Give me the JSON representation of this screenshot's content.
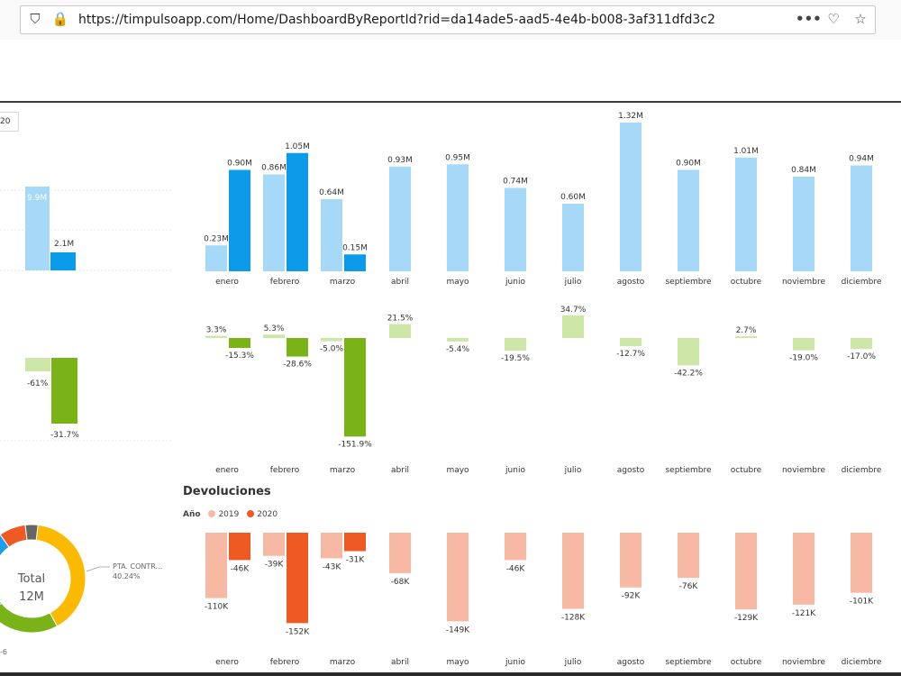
{
  "browser": {
    "url": "https://timpulsoapp.com/Home/DashboardByReportId?rid=da14ade5-aad5-4e4b-b008-3af311dfd3c2",
    "icons": [
      "shield-icon",
      "lock-icon",
      "more-icon",
      "pocket-icon",
      "star-icon"
    ]
  },
  "report": {
    "tab_fragment": "20",
    "devoluciones_title": "Devoluciones",
    "legend_label": "Año",
    "legend_2019": "2019",
    "legend_2020": "2020",
    "donut_center_label": "Total",
    "donut_center_value": "12M",
    "donut_slice_label": "PTA. CONTR...",
    "donut_slice_pct": "40.24%",
    "left_partial": {
      "sales_2019_label": "9.9M",
      "sales_2020_label": "2.1M",
      "var_2019_label": "-61%",
      "var_2020_label": "-31.7%",
      "ret_tick_label": "-6"
    }
  },
  "colors": {
    "sales_2019": "#a6d9f7",
    "sales_2020": "#0b9be8",
    "var_2019": "#cde7a7",
    "var_2020": "#7ab317",
    "ret_2019": "#f8b9a4",
    "ret_2020": "#ef5a24",
    "donut": [
      "#fbb900",
      "#7ab317",
      "#1f9cf0",
      "#ef5a24",
      "#666666"
    ]
  },
  "chart_data": [
    {
      "type": "bar",
      "categories": [
        "enero",
        "febrero",
        "marzo",
        "abril",
        "mayo",
        "junio",
        "julio",
        "agosto",
        "septiembre",
        "octubre",
        "noviembre",
        "diciembre"
      ],
      "series": [
        {
          "values": [
            0.23,
            0.86,
            0.64,
            0.93,
            0.95,
            0.74,
            0.6,
            1.32,
            0.9,
            1.01,
            0.84,
            0.94
          ],
          "labels": [
            "0.23M",
            "0.86M",
            "0.64M",
            "0.93M",
            "0.95M",
            "0.74M",
            "0.60M",
            "1.32M",
            "0.90M",
            "1.01M",
            "0.84M",
            "0.94M"
          ]
        },
        {
          "values": [
            0.9,
            1.05,
            0.15,
            null,
            null,
            null,
            null,
            null,
            null,
            null,
            null,
            null
          ],
          "labels": [
            "0.90M",
            "1.05M",
            "0.15M",
            "",
            "",
            "",
            "",
            "",
            "",
            "",
            "",
            ""
          ]
        }
      ]
    },
    {
      "type": "bar",
      "categories": [
        "enero",
        "febrero",
        "marzo",
        "abril",
        "mayo",
        "junio",
        "julio",
        "agosto",
        "septiembre",
        "octubre",
        "noviembre",
        "diciembre"
      ],
      "series": [
        {
          "values": [
            3.3,
            5.3,
            -5.0,
            21.5,
            -5.4,
            -19.5,
            34.7,
            -12.7,
            -42.2,
            2.7,
            -19.0,
            -17.0
          ],
          "labels": [
            "3.3%",
            "5.3%",
            "-5.0%",
            "21.5%",
            "-5.4%",
            "-19.5%",
            "34.7%",
            "-12.7%",
            "-42.2%",
            "2.7%",
            "-19.0%",
            "-17.0%"
          ]
        },
        {
          "values": [
            -15.3,
            -28.6,
            -151.9,
            null,
            null,
            null,
            null,
            null,
            null,
            null,
            null,
            null
          ],
          "labels": [
            "-15.3%",
            "-28.6%",
            "-151.9%",
            "",
            "",
            "",
            "",
            "",
            "",
            "",
            "",
            ""
          ]
        }
      ]
    },
    {
      "type": "bar",
      "title": "Devoluciones",
      "categories": [
        "enero",
        "febrero",
        "marzo",
        "abril",
        "mayo",
        "junio",
        "julio",
        "agosto",
        "septiembre",
        "octubre",
        "noviembre",
        "diciembre"
      ],
      "series": [
        {
          "name": "2019",
          "values": [
            -110,
            -39,
            -43,
            -68,
            -149,
            -46,
            -128,
            -92,
            -76,
            -129,
            -121,
            -101
          ],
          "labels": [
            "-110K",
            "-39K",
            "-43K",
            "-68K",
            "-149K",
            "-46K",
            "-128K",
            "-92K",
            "-76K",
            "-129K",
            "-121K",
            "-101K"
          ]
        },
        {
          "name": "2020",
          "values": [
            -46,
            -152,
            -31,
            null,
            null,
            null,
            null,
            null,
            null,
            null,
            null,
            null
          ],
          "labels": [
            "-46K",
            "-152K",
            "-31K",
            "",
            "",
            "",
            "",
            "",
            "",
            "",
            "",
            ""
          ]
        }
      ]
    },
    {
      "type": "pie",
      "slices": [
        {
          "label": "PTA. CONTR...",
          "value": 40.24
        },
        {
          "value": 22
        },
        {
          "value": 26
        },
        {
          "value": 8
        },
        {
          "value": 3.76
        }
      ]
    }
  ]
}
